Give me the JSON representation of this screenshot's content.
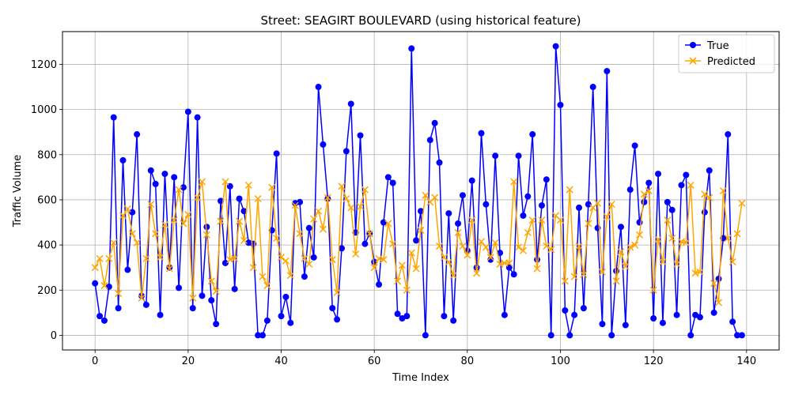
{
  "chart_data": {
    "type": "line",
    "title": "Street: SEAGIRT BOULEVARD (using historical feature)",
    "xlabel": "Time Index",
    "ylabel": "Traffic Volume",
    "xlim": [
      -7,
      147
    ],
    "ylim": [
      -65,
      1345
    ],
    "xticks": [
      0,
      20,
      40,
      60,
      80,
      100,
      120,
      140
    ],
    "yticks": [
      0,
      200,
      400,
      600,
      800,
      1000,
      1200
    ],
    "grid": true,
    "legend_position": "upper right",
    "series": [
      {
        "name": "True",
        "color": "#0000ff",
        "marker": "circle",
        "values": [
          230,
          85,
          65,
          215,
          965,
          120,
          775,
          290,
          545,
          890,
          175,
          135,
          730,
          670,
          90,
          715,
          300,
          700,
          210,
          655,
          990,
          120,
          965,
          175,
          480,
          155,
          50,
          595,
          320,
          660,
          205,
          605,
          550,
          410,
          405,
          0,
          0,
          65,
          465,
          805,
          85,
          170,
          55,
          585,
          590,
          260,
          475,
          345,
          1100,
          845,
          605,
          120,
          70,
          385,
          815,
          1025,
          455,
          885,
          405,
          450,
          325,
          225,
          500,
          700,
          675,
          95,
          75,
          85,
          1270,
          420,
          550,
          0,
          865,
          940,
          765,
          85,
          540,
          65,
          495,
          620,
          375,
          685,
          300,
          895,
          580,
          335,
          795,
          365,
          90,
          300,
          270,
          795,
          530,
          615,
          890,
          335,
          575,
          690,
          0,
          1280,
          1020,
          110,
          0,
          90,
          565,
          120,
          580,
          1100,
          475,
          50,
          1170,
          0,
          285,
          480,
          45,
          645,
          840,
          500,
          590,
          675,
          75,
          715,
          55,
          590,
          555,
          90,
          665,
          710,
          0,
          90,
          80,
          545,
          730,
          100,
          250,
          430,
          890,
          60,
          0,
          0
        ]
      },
      {
        "name": "Predicted",
        "color": "#ffa500",
        "marker": "x",
        "values": [
          300,
          340,
          220,
          340,
          410,
          185,
          530,
          560,
          450,
          410,
          165,
          340,
          580,
          450,
          345,
          490,
          295,
          510,
          645,
          495,
          535,
          165,
          610,
          680,
          445,
          240,
          195,
          505,
          680,
          335,
          340,
          505,
          420,
          665,
          300,
          605,
          260,
          220,
          655,
          430,
          345,
          330,
          265,
          575,
          450,
          340,
          315,
          515,
          550,
          470,
          610,
          335,
          190,
          660,
          605,
          565,
          360,
          570,
          645,
          450,
          300,
          340,
          335,
          495,
          405,
          240,
          310,
          200,
          365,
          295,
          465,
          620,
          590,
          610,
          395,
          345,
          325,
          265,
          455,
          395,
          355,
          510,
          275,
          415,
          390,
          345,
          410,
          315,
          320,
          320,
          680,
          390,
          375,
          455,
          510,
          295,
          510,
          395,
          380,
          530,
          510,
          240,
          645,
          260,
          395,
          270,
          495,
          565,
          585,
          280,
          525,
          580,
          240,
          370,
          305,
          390,
          400,
          445,
          625,
          640,
          200,
          425,
          325,
          510,
          430,
          315,
          415,
          410,
          665,
          275,
          280,
          625,
          610,
          230,
          145,
          640,
          430,
          325,
          450,
          585
        ]
      }
    ]
  }
}
